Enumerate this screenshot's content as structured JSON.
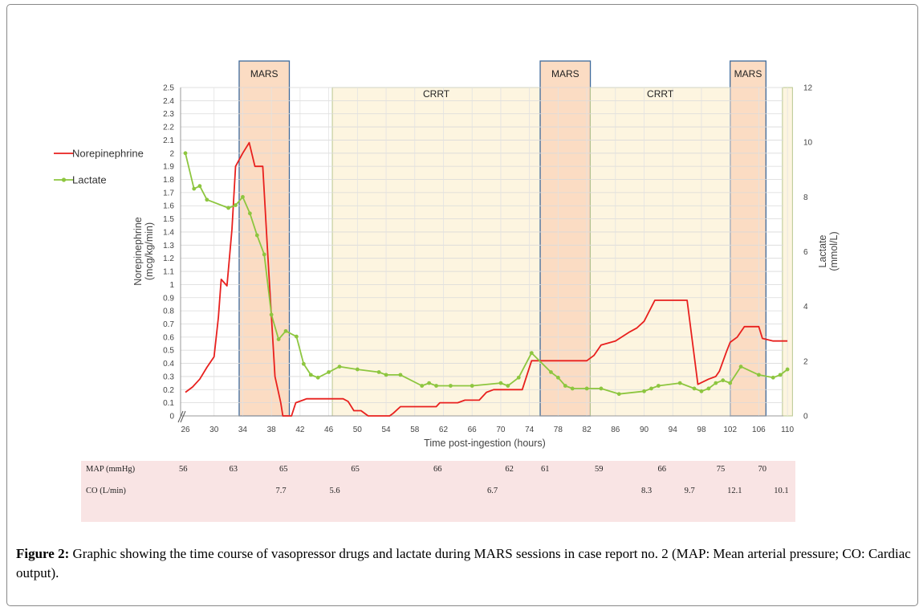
{
  "chart_data": {
    "type": "line",
    "xlabel": "Time post-ingestion (hours)",
    "ylabel_left": "Norepinephrine (mcg/kg/min)",
    "ylabel_right": "Lactate (mmol/L)",
    "xlim": [
      26,
      110.5
    ],
    "ylim_left": [
      0,
      2.5
    ],
    "ylim_right": [
      0,
      12
    ],
    "x_ticks": [
      26,
      30,
      34,
      38,
      42,
      46,
      50,
      54,
      58,
      62,
      66,
      70,
      74,
      78,
      82,
      86,
      90,
      94,
      98,
      102,
      106,
      110
    ],
    "y_left_ticks": [
      "0",
      "0.1",
      "0.2",
      "0.3",
      "0.4",
      "0.5",
      "0.6",
      "0.7",
      "0.8",
      "0.9",
      "1",
      "1.1",
      "1.2",
      "1.3",
      "1.4",
      "1.5",
      "1.6",
      "1.7",
      "1.8",
      "1.9",
      "2",
      "2.1",
      "2.2",
      "2.3",
      "2.4",
      "2.5"
    ],
    "y_right_ticks": [
      "0",
      "2",
      "4",
      "6",
      "8",
      "10",
      "12"
    ],
    "grid": true,
    "legend_position": "left",
    "series": [
      {
        "name": "Norepinephrine",
        "color": "#e8201e",
        "axis": "left",
        "marker": "none",
        "points": [
          [
            26,
            0.18
          ],
          [
            27,
            0.22
          ],
          [
            28,
            0.28
          ],
          [
            29,
            0.37
          ],
          [
            30,
            0.45
          ],
          [
            30.6,
            0.75
          ],
          [
            31,
            1.04
          ],
          [
            31.8,
            0.99
          ],
          [
            32.5,
            1.42
          ],
          [
            33,
            1.9
          ],
          [
            34,
            2.0
          ],
          [
            34.9,
            2.08
          ],
          [
            35.7,
            1.9
          ],
          [
            36.8,
            1.9
          ],
          [
            37.5,
            1.22
          ],
          [
            38.5,
            0.3
          ],
          [
            39.3,
            0.1
          ],
          [
            39.6,
            0
          ],
          [
            40.8,
            0
          ],
          [
            41.4,
            0.1
          ],
          [
            42.4,
            0.12
          ],
          [
            42.9,
            0.13
          ],
          [
            45.5,
            0.13
          ],
          [
            48,
            0.13
          ],
          [
            48.7,
            0.11
          ],
          [
            49.5,
            0.04
          ],
          [
            50.5,
            0.04
          ],
          [
            51.5,
            0
          ],
          [
            54.5,
            0
          ],
          [
            55,
            0.02
          ],
          [
            56,
            0.07
          ],
          [
            57,
            0.07
          ],
          [
            60,
            0.07
          ],
          [
            61,
            0.07
          ],
          [
            61.5,
            0.1
          ],
          [
            62,
            0.1
          ],
          [
            64,
            0.1
          ],
          [
            65,
            0.12
          ],
          [
            67,
            0.12
          ],
          [
            68,
            0.18
          ],
          [
            69,
            0.2
          ],
          [
            72,
            0.2
          ],
          [
            73,
            0.2
          ],
          [
            74.3,
            0.42
          ],
          [
            77,
            0.42
          ],
          [
            82,
            0.42
          ],
          [
            83,
            0.46
          ],
          [
            84,
            0.54
          ],
          [
            86,
            0.57
          ],
          [
            88,
            0.64
          ],
          [
            89,
            0.67
          ],
          [
            90,
            0.72
          ],
          [
            91.5,
            0.88
          ],
          [
            96,
            0.88
          ],
          [
            97.5,
            0.24
          ],
          [
            99,
            0.28
          ],
          [
            100,
            0.3
          ],
          [
            100.5,
            0.34
          ],
          [
            101.5,
            0.49
          ],
          [
            102,
            0.56
          ],
          [
            103,
            0.6
          ],
          [
            104,
            0.68
          ],
          [
            106,
            0.68
          ],
          [
            106.5,
            0.59
          ],
          [
            108,
            0.57
          ],
          [
            110,
            0.57
          ]
        ]
      },
      {
        "name": "Lactate",
        "color": "#8dc63f",
        "axis": "right",
        "marker": "circle",
        "points": [
          [
            26,
            9.6
          ],
          [
            27.2,
            8.3
          ],
          [
            28,
            8.4
          ],
          [
            29,
            7.9
          ],
          [
            32,
            7.6
          ],
          [
            33,
            7.7
          ],
          [
            34,
            8.0
          ],
          [
            35,
            7.4
          ],
          [
            36,
            6.6
          ],
          [
            37,
            5.9
          ],
          [
            38,
            3.7
          ],
          [
            39,
            2.8
          ],
          [
            40,
            3.1
          ],
          [
            41.5,
            2.9
          ],
          [
            42.5,
            1.9
          ],
          [
            43.5,
            1.5
          ],
          [
            44.5,
            1.4
          ],
          [
            46,
            1.6
          ],
          [
            47.5,
            1.8
          ],
          [
            50,
            1.7
          ],
          [
            53,
            1.6
          ],
          [
            54,
            1.5
          ],
          [
            56,
            1.5
          ],
          [
            59,
            1.1
          ],
          [
            60,
            1.2
          ],
          [
            61,
            1.1
          ],
          [
            63,
            1.1
          ],
          [
            66,
            1.1
          ],
          [
            70,
            1.2
          ],
          [
            71,
            1.1
          ],
          [
            72.5,
            1.4
          ],
          [
            74.3,
            2.3
          ],
          [
            77,
            1.6
          ],
          [
            78,
            1.4
          ],
          [
            79,
            1.1
          ],
          [
            80,
            1.0
          ],
          [
            82,
            1.0
          ],
          [
            84,
            1.0
          ],
          [
            86.5,
            0.8
          ],
          [
            90,
            0.9
          ],
          [
            91,
            1.0
          ],
          [
            92,
            1.1
          ],
          [
            95,
            1.2
          ],
          [
            97,
            1.0
          ],
          [
            98,
            0.9
          ],
          [
            99,
            1.0
          ],
          [
            100,
            1.2
          ],
          [
            101,
            1.3
          ],
          [
            102,
            1.2
          ],
          [
            103.5,
            1.8
          ],
          [
            106,
            1.5
          ],
          [
            108,
            1.4
          ],
          [
            109,
            1.5
          ],
          [
            110,
            1.7
          ]
        ]
      }
    ],
    "regions": [
      {
        "label": "MARS",
        "type": "mars",
        "x_start": 33.5,
        "x_end": 40.5
      },
      {
        "label": "CRRT",
        "type": "crrt",
        "x_start": 46.5,
        "x_end": 75.5
      },
      {
        "label": "MARS",
        "type": "mars",
        "x_start": 75.5,
        "x_end": 82.5
      },
      {
        "label": "CRRT",
        "type": "crrt",
        "x_start": 82.5,
        "x_end": 102
      },
      {
        "label": "MARS",
        "type": "mars",
        "x_start": 102,
        "x_end": 107
      },
      {
        "label": "",
        "type": "crrt",
        "x_start": 109.3,
        "x_end": 110.7
      }
    ],
    "colors": {
      "mars_fill": "#fbdcc3",
      "crrt_fill": "#fdf5e0",
      "region_border": "#3e6a9b",
      "crrt_border": "#b8c78f"
    }
  },
  "table": {
    "rows": [
      {
        "label": "MAP (mmHg)",
        "values": [
          {
            "x": 26,
            "text": "56"
          },
          {
            "x": 33,
            "text": "63"
          },
          {
            "x": 40,
            "text": "65"
          },
          {
            "x": 50,
            "text": "65"
          },
          {
            "x": 61.5,
            "text": "66"
          },
          {
            "x": 71.5,
            "text": "62"
          },
          {
            "x": 76.5,
            "text": "61"
          },
          {
            "x": 84,
            "text": "59"
          },
          {
            "x": 92.8,
            "text": "66"
          },
          {
            "x": 101,
            "text": "75"
          },
          {
            "x": 106.8,
            "text": "70"
          }
        ]
      },
      {
        "label": "CO (L/min)",
        "values": [
          {
            "x": 39.5,
            "text": "7.7"
          },
          {
            "x": 47,
            "text": "5.6"
          },
          {
            "x": 69,
            "text": "6.7"
          },
          {
            "x": 90.5,
            "text": "8.3"
          },
          {
            "x": 96.5,
            "text": "9.7"
          },
          {
            "x": 102.5,
            "text": "12.1"
          },
          {
            "x": 109,
            "text": "10.1"
          }
        ]
      }
    ]
  },
  "caption": {
    "label": "Figure 2:",
    "text": " Graphic showing the time course of vasopressor drugs and lactate during MARS sessions in case report no. 2 (MAP: Mean arterial pressure; CO: Cardiac output)."
  }
}
